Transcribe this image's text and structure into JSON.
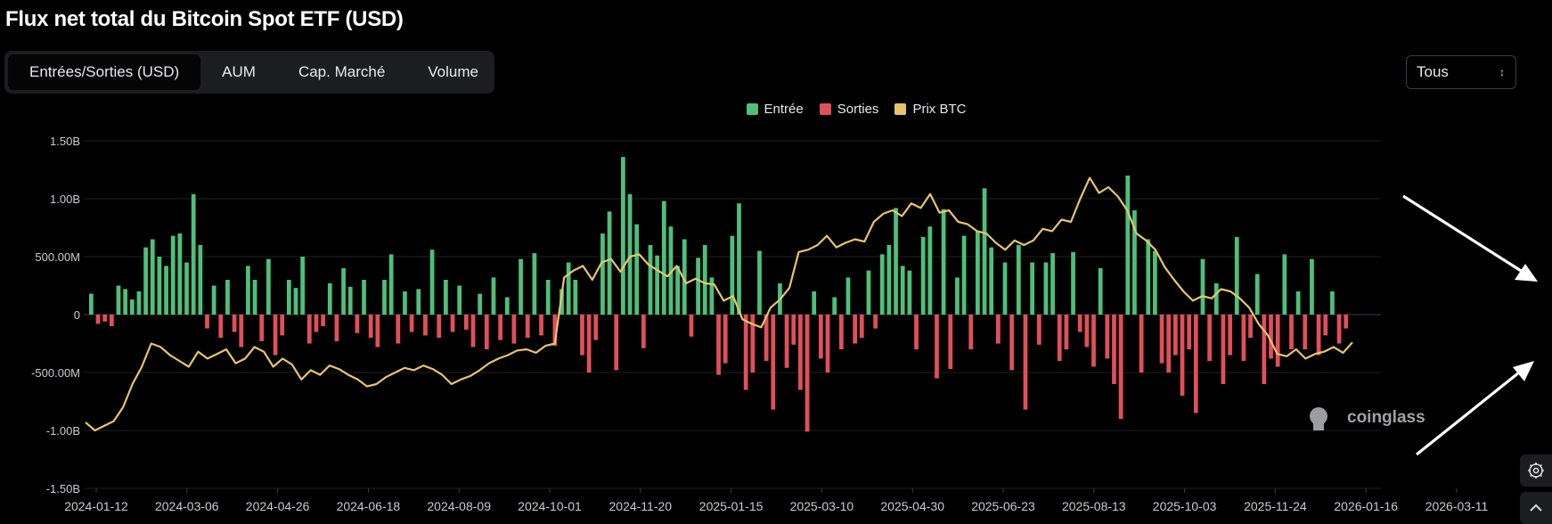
{
  "title": "Flux net total du Bitcoin Spot ETF (USD)",
  "tabs": [
    {
      "label": "Entrées/Sorties (USD)",
      "active": true
    },
    {
      "label": "AUM",
      "active": false
    },
    {
      "label": "Cap. Marché",
      "active": false
    },
    {
      "label": "Volume",
      "active": false
    }
  ],
  "range_select": {
    "value": "Tous"
  },
  "watermark": "coinglass",
  "colors": {
    "inflow": "#4fbf7a",
    "outflow": "#e0505a",
    "price": "#e8c56b",
    "arrow": "#ffffff"
  },
  "icons": [
    "settings-icon",
    "chevron-up-icon",
    "arrow-annotation-icon"
  ],
  "chart_data": {
    "type": "bar",
    "title": "Flux net total du Bitcoin Spot ETF (USD)",
    "legend": [
      "Entrée",
      "Sorties",
      "Prix BTC"
    ],
    "legend_position": "top-center",
    "ylim": [
      -1500000000,
      1500000000
    ],
    "y_ticks": [
      {
        "value": 1500000000,
        "label": "1.50B"
      },
      {
        "value": 1000000000,
        "label": "1.00B"
      },
      {
        "value": 500000000,
        "label": "500.00M"
      },
      {
        "value": 0,
        "label": "0"
      },
      {
        "value": -500000000,
        "label": "-500.00M"
      },
      {
        "value": -1000000000,
        "label": "-1.00B"
      },
      {
        "value": -1500000000,
        "label": "-1.50B"
      }
    ],
    "x_ticks": [
      "2024-01-12",
      "2024-03-06",
      "2024-04-26",
      "2024-06-18",
      "2024-08-09",
      "2024-10-01",
      "2024-11-20",
      "2025-01-15",
      "2025-03-10",
      "2025-04-30",
      "2025-06-23",
      "2025-08-13",
      "2025-10-03",
      "2025-11-24",
      "2026-01-16",
      "2026-03-11"
    ],
    "grid": true,
    "series": [
      {
        "name": "Flux net",
        "description_unit": "USD",
        "values": [
          180000000,
          -80000000,
          -60000000,
          -100000000,
          250000000,
          220000000,
          130000000,
          200000000,
          580000000,
          650000000,
          500000000,
          420000000,
          680000000,
          700000000,
          450000000,
          1040000000,
          600000000,
          -120000000,
          250000000,
          -200000000,
          300000000,
          -150000000,
          -280000000,
          420000000,
          300000000,
          -230000000,
          480000000,
          -350000000,
          -180000000,
          300000000,
          230000000,
          500000000,
          -250000000,
          -150000000,
          -100000000,
          270000000,
          -230000000,
          400000000,
          240000000,
          -160000000,
          300000000,
          -200000000,
          -280000000,
          300000000,
          520000000,
          -250000000,
          200000000,
          -150000000,
          220000000,
          -180000000,
          560000000,
          -200000000,
          300000000,
          -150000000,
          250000000,
          -130000000,
          -280000000,
          180000000,
          -300000000,
          320000000,
          -220000000,
          150000000,
          -250000000,
          480000000,
          -200000000,
          530000000,
          -180000000,
          300000000,
          -270000000,
          220000000,
          450000000,
          300000000,
          -350000000,
          -500000000,
          -220000000,
          700000000,
          890000000,
          -480000000,
          1360000000,
          1040000000,
          780000000,
          -290000000,
          600000000,
          510000000,
          980000000,
          760000000,
          420000000,
          650000000,
          -190000000,
          490000000,
          600000000,
          320000000,
          -520000000,
          -420000000,
          680000000,
          960000000,
          -650000000,
          -500000000,
          550000000,
          -400000000,
          -820000000,
          270000000,
          -460000000,
          -260000000,
          -650000000,
          -1010000000,
          200000000,
          -380000000,
          -500000000,
          150000000,
          -300000000,
          320000000,
          -250000000,
          -200000000,
          380000000,
          -120000000,
          520000000,
          600000000,
          920000000,
          420000000,
          380000000,
          -300000000,
          670000000,
          760000000,
          -550000000,
          910000000,
          -470000000,
          320000000,
          680000000,
          -300000000,
          720000000,
          1090000000,
          580000000,
          -250000000,
          450000000,
          -480000000,
          600000000,
          -820000000,
          450000000,
          -260000000,
          450000000,
          530000000,
          -400000000,
          -300000000,
          540000000,
          -150000000,
          -280000000,
          -450000000,
          400000000,
          -380000000,
          -600000000,
          -900000000,
          1200000000,
          900000000,
          -500000000,
          650000000,
          550000000,
          -420000000,
          -500000000,
          -350000000,
          -700000000,
          -300000000,
          -850000000,
          480000000,
          -400000000,
          270000000,
          -600000000,
          -350000000,
          670000000,
          -400000000,
          -200000000,
          350000000,
          -600000000,
          -380000000,
          -450000000,
          520000000,
          -300000000,
          200000000,
          -300000000,
          480000000,
          -350000000,
          -180000000,
          200000000,
          -250000000,
          -120000000
        ]
      },
      {
        "name": "Prix BTC",
        "description_unit": "chart-relative (no price axis shown)",
        "values": [
          -930000000,
          -1000000000,
          -960000000,
          -920000000,
          -800000000,
          -600000000,
          -450000000,
          -250000000,
          -280000000,
          -350000000,
          -400000000,
          -450000000,
          -320000000,
          -380000000,
          -340000000,
          -300000000,
          -420000000,
          -380000000,
          -280000000,
          -320000000,
          -450000000,
          -380000000,
          -430000000,
          -560000000,
          -480000000,
          -520000000,
          -440000000,
          -470000000,
          -520000000,
          -560000000,
          -620000000,
          -600000000,
          -540000000,
          -500000000,
          -460000000,
          -480000000,
          -440000000,
          -470000000,
          -520000000,
          -600000000,
          -560000000,
          -530000000,
          -480000000,
          -420000000,
          -380000000,
          -350000000,
          -310000000,
          -300000000,
          -330000000,
          -270000000,
          -250000000,
          320000000,
          380000000,
          420000000,
          300000000,
          450000000,
          480000000,
          370000000,
          500000000,
          520000000,
          430000000,
          380000000,
          330000000,
          420000000,
          270000000,
          310000000,
          270000000,
          260000000,
          120000000,
          160000000,
          -40000000,
          -80000000,
          -110000000,
          60000000,
          130000000,
          230000000,
          540000000,
          560000000,
          600000000,
          680000000,
          580000000,
          620000000,
          650000000,
          630000000,
          800000000,
          870000000,
          900000000,
          850000000,
          960000000,
          920000000,
          1040000000,
          880000000,
          900000000,
          800000000,
          780000000,
          720000000,
          700000000,
          620000000,
          560000000,
          640000000,
          600000000,
          640000000,
          740000000,
          720000000,
          820000000,
          800000000,
          1000000000,
          1180000000,
          1050000000,
          1100000000,
          1020000000,
          900000000,
          700000000,
          640000000,
          560000000,
          410000000,
          300000000,
          200000000,
          120000000,
          160000000,
          140000000,
          220000000,
          200000000,
          140000000,
          60000000,
          -80000000,
          -180000000,
          -340000000,
          -360000000,
          -300000000,
          -380000000,
          -340000000,
          -320000000,
          -280000000,
          -330000000,
          -240000000
        ]
      }
    ]
  }
}
